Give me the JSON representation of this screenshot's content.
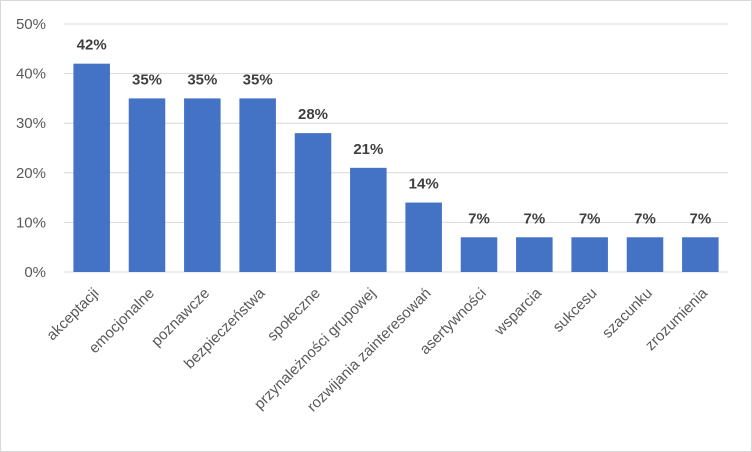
{
  "chart_data": {
    "type": "bar",
    "title": "",
    "xlabel": "",
    "ylabel": "",
    "ylim": [
      0,
      50
    ],
    "yticks": [
      "0%",
      "10%",
      "20%",
      "30%",
      "40%",
      "50%"
    ],
    "grid": true,
    "bar_color": "#4472C4",
    "categories": [
      "akceptacji",
      "emocjonalne",
      "poznawcze",
      "bezpieczeństwa",
      "społeczne",
      "przynależności grupowej",
      "rozwijania zainteresowań",
      "asertywności",
      "wsparcia",
      "sukcesu",
      "szacunku",
      "zrozumienia"
    ],
    "values": [
      42,
      35,
      35,
      35,
      28,
      21,
      14,
      7,
      7,
      7,
      7,
      7
    ],
    "data_labels": [
      "42%",
      "35%",
      "35%",
      "35%",
      "28%",
      "21%",
      "14%",
      "7%",
      "7%",
      "7%",
      "7%",
      "7%"
    ]
  }
}
